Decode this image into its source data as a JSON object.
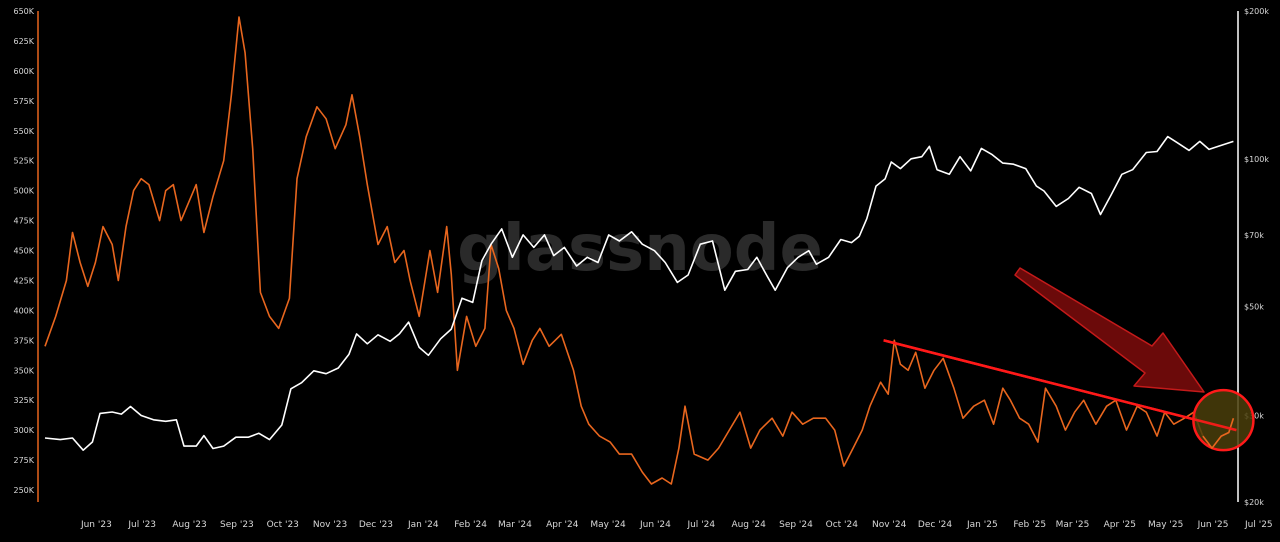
{
  "watermark": "glassnode",
  "colors": {
    "background": "#000000",
    "left_series": "#e8661e",
    "right_series": "#ffffff",
    "trend": "#ff1a1a",
    "arrow_fill": "#6b0a0a",
    "arrow_stroke": "#c41a1a",
    "highlight_fill": "#4a3e0a",
    "highlight_stroke": "#ff1a1a",
    "left_axis": "#e8661e",
    "right_axis": "#ffffff",
    "tick_text": "#d8d8d8"
  },
  "chart_data": {
    "type": "line",
    "title": "",
    "xlabel": "",
    "ylabel": "",
    "x_ticks": [
      "Jun '23",
      "Jul '23",
      "Aug '23",
      "Sep '23",
      "Oct '23",
      "Nov '23",
      "Dec '23",
      "Jan '24",
      "Feb '24",
      "Mar '24",
      "Apr '24",
      "May '24",
      "Jun '24",
      "Jul '24",
      "Aug '24",
      "Sep '24",
      "Oct '24",
      "Nov '24",
      "Dec '24",
      "Jan '25",
      "Feb '25",
      "Mar '25",
      "Apr '25",
      "May '25",
      "Jun '25",
      "Jul '25"
    ],
    "left_axis": {
      "ylim": [
        240000,
        650000
      ],
      "ticks": [
        "250K",
        "275K",
        "300K",
        "325K",
        "350K",
        "375K",
        "400K",
        "425K",
        "450K",
        "475K",
        "500K",
        "525K",
        "550K",
        "575K",
        "600K",
        "625K",
        "650K"
      ]
    },
    "right_axis": {
      "scale": "log",
      "ylim": [
        20000,
        200000
      ],
      "ticks": [
        {
          "label": "$20k",
          "value": 20000
        },
        {
          "label": "$30k",
          "value": 30000
        },
        {
          "label": "$50k",
          "value": 50000
        },
        {
          "label": "$70k",
          "value": 70000
        },
        {
          "label": "$100k",
          "value": 100000
        },
        {
          "label": "$200k",
          "value": 200000
        }
      ]
    },
    "series": [
      {
        "axis": "left",
        "points": [
          [
            "2023-05-18",
            370000
          ],
          [
            "2023-05-25",
            395000
          ],
          [
            "2023-06-01",
            425000
          ],
          [
            "2023-06-05",
            465000
          ],
          [
            "2023-06-10",
            440000
          ],
          [
            "2023-06-15",
            420000
          ],
          [
            "2023-06-20",
            440000
          ],
          [
            "2023-06-25",
            470000
          ],
          [
            "2023-07-01",
            455000
          ],
          [
            "2023-07-05",
            425000
          ],
          [
            "2023-07-10",
            470000
          ],
          [
            "2023-07-15",
            500000
          ],
          [
            "2023-07-20",
            510000
          ],
          [
            "2023-07-25",
            505000
          ],
          [
            "2023-08-01",
            475000
          ],
          [
            "2023-08-05",
            500000
          ],
          [
            "2023-08-10",
            505000
          ],
          [
            "2023-08-15",
            475000
          ],
          [
            "2023-08-20",
            490000
          ],
          [
            "2023-08-25",
            505000
          ],
          [
            "2023-08-30",
            465000
          ],
          [
            "2023-09-05",
            495000
          ],
          [
            "2023-09-12",
            525000
          ],
          [
            "2023-09-17",
            580000
          ],
          [
            "2023-09-22",
            645000
          ],
          [
            "2023-09-26",
            615000
          ],
          [
            "2023-10-01",
            535000
          ],
          [
            "2023-10-06",
            415000
          ],
          [
            "2023-10-12",
            395000
          ],
          [
            "2023-10-18",
            385000
          ],
          [
            "2023-10-25",
            410000
          ],
          [
            "2023-10-30",
            510000
          ],
          [
            "2023-11-05",
            545000
          ],
          [
            "2023-11-12",
            570000
          ],
          [
            "2023-11-18",
            560000
          ],
          [
            "2023-11-24",
            535000
          ],
          [
            "2023-12-01",
            555000
          ],
          [
            "2023-12-05",
            580000
          ],
          [
            "2023-12-10",
            545000
          ],
          [
            "2023-12-15",
            505000
          ],
          [
            "2023-12-22",
            455000
          ],
          [
            "2023-12-28",
            470000
          ],
          [
            "2024-01-02",
            440000
          ],
          [
            "2024-01-08",
            450000
          ],
          [
            "2024-01-12",
            425000
          ],
          [
            "2024-01-18",
            395000
          ],
          [
            "2024-01-25",
            450000
          ],
          [
            "2024-01-30",
            415000
          ],
          [
            "2024-02-05",
            470000
          ],
          [
            "2024-02-08",
            430000
          ],
          [
            "2024-02-12",
            350000
          ],
          [
            "2024-02-18",
            395000
          ],
          [
            "2024-02-24",
            370000
          ],
          [
            "2024-03-01",
            385000
          ],
          [
            "2024-03-05",
            455000
          ],
          [
            "2024-03-10",
            435000
          ],
          [
            "2024-03-15",
            400000
          ],
          [
            "2024-03-20",
            385000
          ],
          [
            "2024-03-26",
            355000
          ],
          [
            "2024-04-01",
            375000
          ],
          [
            "2024-04-06",
            385000
          ],
          [
            "2024-04-12",
            370000
          ],
          [
            "2024-04-20",
            380000
          ],
          [
            "2024-04-28",
            350000
          ],
          [
            "2024-05-03",
            320000
          ],
          [
            "2024-05-08",
            305000
          ],
          [
            "2024-05-15",
            295000
          ],
          [
            "2024-05-22",
            290000
          ],
          [
            "2024-05-28",
            280000
          ],
          [
            "2024-06-05",
            280000
          ],
          [
            "2024-06-12",
            265000
          ],
          [
            "2024-06-18",
            255000
          ],
          [
            "2024-06-25",
            260000
          ],
          [
            "2024-07-01",
            255000
          ],
          [
            "2024-07-06",
            285000
          ],
          [
            "2024-07-10",
            320000
          ],
          [
            "2024-07-16",
            280000
          ],
          [
            "2024-07-25",
            275000
          ],
          [
            "2024-08-01",
            285000
          ],
          [
            "2024-08-08",
            300000
          ],
          [
            "2024-08-15",
            315000
          ],
          [
            "2024-08-22",
            285000
          ],
          [
            "2024-08-28",
            300000
          ],
          [
            "2024-09-05",
            310000
          ],
          [
            "2024-09-12",
            295000
          ],
          [
            "2024-09-18",
            315000
          ],
          [
            "2024-09-25",
            305000
          ],
          [
            "2024-10-02",
            310000
          ],
          [
            "2024-10-10",
            310000
          ],
          [
            "2024-10-16",
            300000
          ],
          [
            "2024-10-22",
            270000
          ],
          [
            "2024-10-28",
            285000
          ],
          [
            "2024-11-03",
            300000
          ],
          [
            "2024-11-08",
            320000
          ],
          [
            "2024-11-15",
            340000
          ],
          [
            "2024-11-20",
            330000
          ],
          [
            "2024-11-24",
            375000
          ],
          [
            "2024-11-28",
            355000
          ],
          [
            "2024-12-03",
            350000
          ],
          [
            "2024-12-08",
            365000
          ],
          [
            "2024-12-14",
            335000
          ],
          [
            "2024-12-20",
            350000
          ],
          [
            "2024-12-26",
            360000
          ],
          [
            "2025-01-02",
            335000
          ],
          [
            "2025-01-08",
            310000
          ],
          [
            "2025-01-15",
            320000
          ],
          [
            "2025-01-22",
            325000
          ],
          [
            "2025-01-28",
            305000
          ],
          [
            "2025-02-03",
            335000
          ],
          [
            "2025-02-08",
            325000
          ],
          [
            "2025-02-14",
            310000
          ],
          [
            "2025-02-20",
            305000
          ],
          [
            "2025-02-26",
            290000
          ],
          [
            "2025-03-03",
            335000
          ],
          [
            "2025-03-10",
            320000
          ],
          [
            "2025-03-16",
            300000
          ],
          [
            "2025-03-22",
            315000
          ],
          [
            "2025-03-28",
            325000
          ],
          [
            "2025-04-05",
            305000
          ],
          [
            "2025-04-12",
            320000
          ],
          [
            "2025-04-18",
            325000
          ],
          [
            "2025-04-25",
            300000
          ],
          [
            "2025-05-02",
            320000
          ],
          [
            "2025-05-08",
            315000
          ],
          [
            "2025-05-15",
            295000
          ],
          [
            "2025-05-20",
            315000
          ],
          [
            "2025-05-26",
            305000
          ],
          [
            "2025-06-02",
            310000
          ],
          [
            "2025-06-08",
            315000
          ],
          [
            "2025-06-14",
            295000
          ],
          [
            "2025-06-20",
            285000
          ],
          [
            "2025-06-26",
            295000
          ],
          [
            "2025-07-01",
            298000
          ],
          [
            "2025-07-04",
            310000
          ]
        ]
      },
      {
        "axis": "right",
        "points": [
          [
            "2023-05-18",
            27000
          ],
          [
            "2023-05-28",
            26800
          ],
          [
            "2023-06-05",
            27000
          ],
          [
            "2023-06-12",
            25500
          ],
          [
            "2023-06-18",
            26500
          ],
          [
            "2023-06-23",
            30300
          ],
          [
            "2023-07-01",
            30500
          ],
          [
            "2023-07-07",
            30200
          ],
          [
            "2023-07-13",
            31300
          ],
          [
            "2023-07-20",
            30000
          ],
          [
            "2023-07-28",
            29400
          ],
          [
            "2023-08-05",
            29200
          ],
          [
            "2023-08-12",
            29400
          ],
          [
            "2023-08-17",
            26000
          ],
          [
            "2023-08-25",
            26000
          ],
          [
            "2023-08-30",
            27300
          ],
          [
            "2023-09-05",
            25700
          ],
          [
            "2023-09-12",
            26000
          ],
          [
            "2023-09-20",
            27100
          ],
          [
            "2023-09-28",
            27100
          ],
          [
            "2023-10-05",
            27600
          ],
          [
            "2023-10-12",
            26800
          ],
          [
            "2023-10-20",
            28700
          ],
          [
            "2023-10-26",
            34000
          ],
          [
            "2023-11-02",
            35000
          ],
          [
            "2023-11-10",
            37000
          ],
          [
            "2023-11-18",
            36500
          ],
          [
            "2023-11-26",
            37500
          ],
          [
            "2023-12-03",
            40000
          ],
          [
            "2023-12-08",
            44000
          ],
          [
            "2023-12-15",
            42000
          ],
          [
            "2023-12-22",
            43800
          ],
          [
            "2023-12-30",
            42500
          ],
          [
            "2024-01-05",
            44000
          ],
          [
            "2024-01-11",
            46500
          ],
          [
            "2024-01-18",
            41300
          ],
          [
            "2024-01-24",
            39800
          ],
          [
            "2024-02-01",
            43000
          ],
          [
            "2024-02-08",
            45000
          ],
          [
            "2024-02-15",
            52000
          ],
          [
            "2024-02-22",
            51000
          ],
          [
            "2024-02-28",
            62000
          ],
          [
            "2024-03-05",
            67000
          ],
          [
            "2024-03-12",
            72000
          ],
          [
            "2024-03-19",
            63000
          ],
          [
            "2024-03-26",
            70000
          ],
          [
            "2024-04-02",
            66000
          ],
          [
            "2024-04-09",
            70000
          ],
          [
            "2024-04-15",
            63500
          ],
          [
            "2024-04-22",
            66000
          ],
          [
            "2024-04-30",
            60500
          ],
          [
            "2024-05-07",
            63000
          ],
          [
            "2024-05-14",
            61500
          ],
          [
            "2024-05-21",
            70000
          ],
          [
            "2024-05-28",
            68000
          ],
          [
            "2024-06-05",
            71000
          ],
          [
            "2024-06-12",
            67000
          ],
          [
            "2024-06-20",
            65000
          ],
          [
            "2024-06-27",
            61500
          ],
          [
            "2024-07-05",
            56000
          ],
          [
            "2024-07-12",
            58000
          ],
          [
            "2024-07-20",
            67000
          ],
          [
            "2024-07-28",
            68000
          ],
          [
            "2024-08-05",
            54000
          ],
          [
            "2024-08-12",
            59000
          ],
          [
            "2024-08-20",
            59500
          ],
          [
            "2024-08-26",
            63000
          ],
          [
            "2024-09-02",
            57500
          ],
          [
            "2024-09-07",
            54000
          ],
          [
            "2024-09-15",
            60000
          ],
          [
            "2024-09-22",
            63000
          ],
          [
            "2024-09-29",
            65000
          ],
          [
            "2024-10-04",
            61000
          ],
          [
            "2024-10-12",
            63000
          ],
          [
            "2024-10-20",
            68500
          ],
          [
            "2024-10-27",
            67500
          ],
          [
            "2024-11-01",
            69500
          ],
          [
            "2024-11-06",
            75500
          ],
          [
            "2024-11-12",
            88000
          ],
          [
            "2024-11-18",
            91000
          ],
          [
            "2024-11-22",
            98500
          ],
          [
            "2024-11-28",
            95500
          ],
          [
            "2024-12-05",
            100000
          ],
          [
            "2024-12-12",
            101000
          ],
          [
            "2024-12-17",
            106000
          ],
          [
            "2024-12-22",
            95000
          ],
          [
            "2024-12-30",
            93000
          ],
          [
            "2025-01-06",
            101000
          ],
          [
            "2025-01-13",
            94500
          ],
          [
            "2025-01-20",
            105000
          ],
          [
            "2025-01-27",
            102000
          ],
          [
            "2025-02-03",
            98000
          ],
          [
            "2025-02-10",
            97500
          ],
          [
            "2025-02-18",
            95500
          ],
          [
            "2025-02-25",
            88000
          ],
          [
            "2025-03-02",
            86000
          ],
          [
            "2025-03-10",
            80000
          ],
          [
            "2025-03-18",
            83000
          ],
          [
            "2025-03-25",
            87500
          ],
          [
            "2025-04-02",
            85000
          ],
          [
            "2025-04-08",
            77000
          ],
          [
            "2025-04-15",
            84500
          ],
          [
            "2025-04-22",
            93000
          ],
          [
            "2025-04-29",
            95000
          ],
          [
            "2025-05-08",
            103000
          ],
          [
            "2025-05-15",
            103500
          ],
          [
            "2025-05-22",
            111000
          ],
          [
            "2025-05-28",
            108000
          ],
          [
            "2025-06-05",
            104000
          ],
          [
            "2025-06-12",
            108500
          ],
          [
            "2025-06-18",
            104500
          ],
          [
            "2025-06-24",
            106000
          ],
          [
            "2025-06-30",
            107500
          ],
          [
            "2025-07-04",
            108500
          ]
        ]
      }
    ],
    "annotations": {
      "trend_line": {
        "from": [
          "2024-11-17",
          375000
        ],
        "to": [
          "2025-07-06",
          300000
        ]
      },
      "arrow": "pointing down-right toward the latest value",
      "highlight_circle": "around the latest values (Jul '25)"
    }
  }
}
